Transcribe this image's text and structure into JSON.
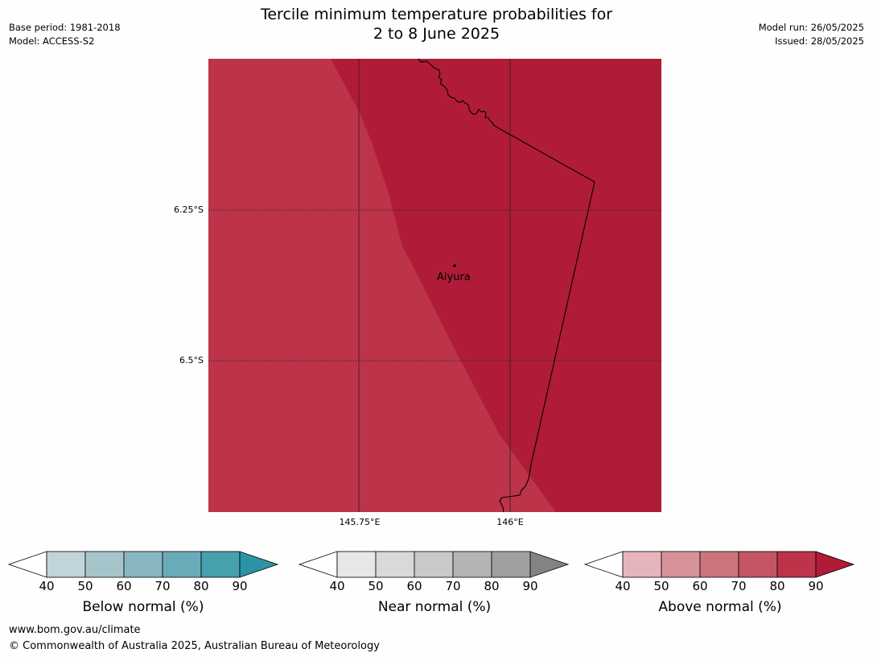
{
  "header": {
    "title_line1": "Tercile minimum temperature probabilities for",
    "title_line2": "2 to 8 June 2025",
    "base_period": "Base period: 1981-2018",
    "model": "Model: ACCESS-S2",
    "model_run": "Model run: 26/05/2025",
    "issued": "Issued: 28/05/2025"
  },
  "map": {
    "lat_labels": [
      "6.25°S",
      "6.5°S"
    ],
    "lon_labels": [
      "145.75°E",
      "146°E"
    ],
    "place": {
      "name": "Aiyura",
      "lat": -6.35,
      "lon": 145.9
    },
    "zones": [
      {
        "category": "Above normal",
        "range": "70-80",
        "color": "#bc334a"
      },
      {
        "category": "Above normal",
        "range": "80-90",
        "color": "#b01c38"
      }
    ]
  },
  "legends": [
    {
      "label": "Below normal (%)",
      "ticks": [
        "40",
        "50",
        "60",
        "70",
        "80",
        "90"
      ],
      "colors": [
        "#ffffff",
        "#c0d4da",
        "#a6c5cb",
        "#8ab6c2",
        "#6aabb9",
        "#47a0ae",
        "#2b93a4"
      ]
    },
    {
      "label": "Near normal (%)",
      "ticks": [
        "40",
        "50",
        "60",
        "70",
        "80",
        "90"
      ],
      "colors": [
        "#ffffff",
        "#e7e7e7",
        "#d9d9d9",
        "#c9c9c9",
        "#b4b4b4",
        "#a0a0a0",
        "#838383"
      ]
    },
    {
      "label": "Above normal (%)",
      "ticks": [
        "40",
        "50",
        "60",
        "70",
        "80",
        "90"
      ],
      "colors": [
        "#ffffff",
        "#e4b6bc",
        "#d79299",
        "#cc747c",
        "#c55564",
        "#bc334a",
        "#b01c38"
      ]
    }
  ],
  "footer": {
    "url": "www.bom.gov.au/climate",
    "copyright": "© Commonwealth of Australia 2025, Australian Bureau of Meteorology"
  }
}
